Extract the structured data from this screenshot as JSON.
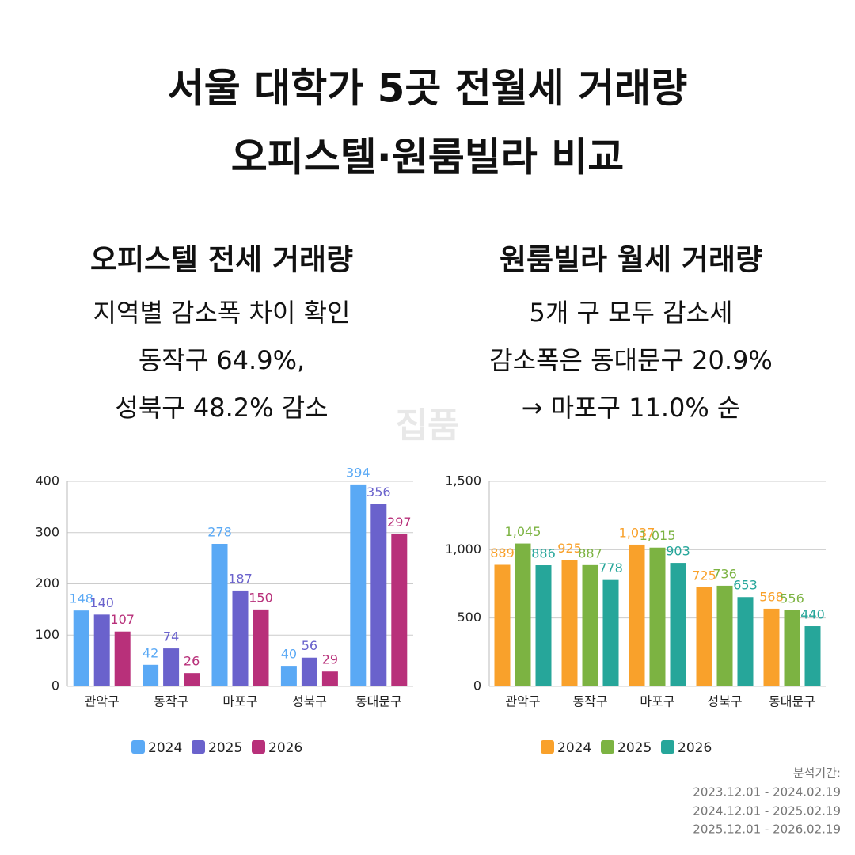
{
  "title": [
    "서울 대학가 5곳 전월세 거래량",
    "오피스텔·원룸빌라 비교"
  ],
  "watermark": "집품",
  "footnote": [
    "분석기간:",
    "2023.12.01 - 2024.02.19",
    "2024.12.01 - 2025.02.19",
    "2025.12.01 - 2026.02.19"
  ],
  "chart_data": [
    {
      "type": "bar",
      "title": "오피스텔 전세 거래량",
      "subtitle": [
        "지역별 감소폭 차이 확인",
        "동작구 64.9%,",
        "성북구 48.2% 감소"
      ],
      "categories": [
        "관악구",
        "동작구",
        "마포구",
        "성북구",
        "동대문구"
      ],
      "series": [
        {
          "name": "2024",
          "color": "#5aa9f5",
          "values": [
            148,
            42,
            278,
            40,
            394
          ]
        },
        {
          "name": "2025",
          "color": "#6a62cc",
          "values": [
            140,
            74,
            187,
            56,
            356
          ]
        },
        {
          "name": "2026",
          "color": "#b8307a",
          "values": [
            107,
            26,
            150,
            29,
            297
          ]
        }
      ],
      "ylim": [
        0,
        400
      ],
      "yticks": [
        0,
        100,
        200,
        300,
        400
      ],
      "grid": true,
      "legend": "bottom"
    },
    {
      "type": "bar",
      "title": "원룸빌라 월세 거래량",
      "subtitle": [
        "5개 구 모두 감소세",
        "감소폭은 동대문구 20.9%",
        "→ 마포구 11.0% 순"
      ],
      "categories": [
        "관악구",
        "동작구",
        "마포구",
        "성북구",
        "동대문구"
      ],
      "series": [
        {
          "name": "2024",
          "color": "#f9a12b",
          "values": [
            889,
            925,
            1037,
            725,
            568
          ],
          "value_labels": [
            "889",
            "925",
            "1,037",
            "725",
            "568"
          ]
        },
        {
          "name": "2025",
          "color": "#7cb342",
          "values": [
            1045,
            887,
            1015,
            736,
            556
          ],
          "value_labels": [
            "1,045",
            "887",
            "1,015",
            "736",
            "556"
          ]
        },
        {
          "name": "2026",
          "color": "#26a69a",
          "values": [
            886,
            778,
            903,
            653,
            440
          ],
          "value_labels": [
            "886",
            "778",
            "903",
            "653",
            "440"
          ]
        }
      ],
      "ylim": [
        0,
        1500
      ],
      "yticks": [
        0,
        500,
        {
          "value": 1000,
          "label": "1,000"
        },
        {
          "value": 1500,
          "label": "1,500"
        }
      ],
      "grid": true,
      "legend": "bottom"
    }
  ]
}
